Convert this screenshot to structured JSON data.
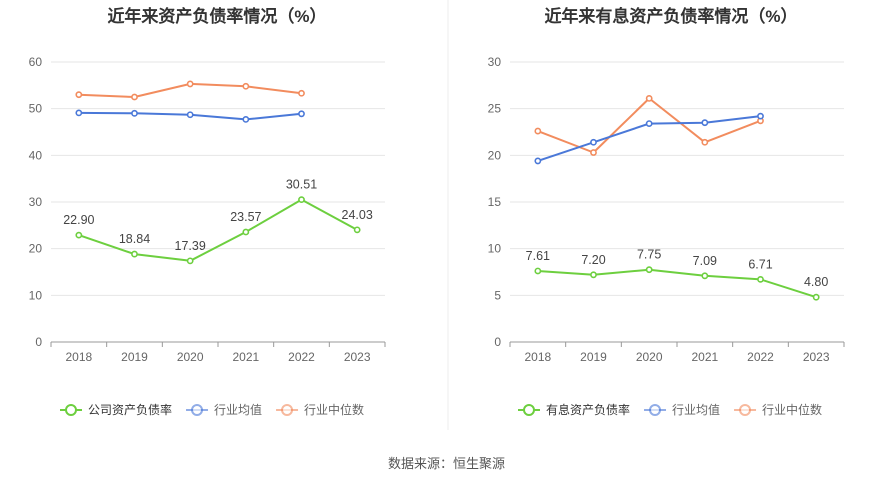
{
  "footer": {
    "source_label": "数据来源：",
    "source_value": "恒生聚源"
  },
  "chart_data": [
    {
      "type": "line",
      "title": "近年来资产负债率情况（%）",
      "categories": [
        "2018",
        "2019",
        "2020",
        "2021",
        "2022",
        "2023"
      ],
      "ylim": [
        0,
        60
      ],
      "yticks": [
        0,
        10,
        20,
        30,
        40,
        50,
        60
      ],
      "grid": true,
      "legend_position": "bottom",
      "series": [
        {
          "name": "公司资产负债率",
          "color": "#6dcf3f",
          "values": [
            22.9,
            18.84,
            17.39,
            23.57,
            30.51,
            24.03
          ],
          "labels": [
            "22.90",
            "18.84",
            "17.39",
            "23.57",
            "30.51",
            "24.03"
          ]
        },
        {
          "name": "行业均值",
          "color": "#4a78d8",
          "values": [
            49.1,
            49.0,
            48.7,
            47.7,
            48.9,
            null
          ]
        },
        {
          "name": "行业中位数",
          "color": "#f28c5e",
          "values": [
            53.0,
            52.5,
            55.3,
            54.8,
            53.3,
            null
          ]
        }
      ]
    },
    {
      "type": "line",
      "title": "近年来有息资产负债率情况（%）",
      "categories": [
        "2018",
        "2019",
        "2020",
        "2021",
        "2022",
        "2023"
      ],
      "ylim": [
        0,
        30
      ],
      "yticks": [
        0,
        5,
        10,
        15,
        20,
        25,
        30
      ],
      "grid": true,
      "legend_position": "bottom",
      "series": [
        {
          "name": "有息资产负债率",
          "color": "#6dcf3f",
          "values": [
            7.61,
            7.2,
            7.75,
            7.09,
            6.71,
            4.8
          ],
          "labels": [
            "7.61",
            "7.20",
            "7.75",
            "7.09",
            "6.71",
            "4.80"
          ]
        },
        {
          "name": "行业均值",
          "color": "#4a78d8",
          "values": [
            19.4,
            21.4,
            23.4,
            23.5,
            24.2,
            null
          ]
        },
        {
          "name": "行业中位数",
          "color": "#f28c5e",
          "values": [
            22.6,
            20.3,
            26.1,
            21.4,
            23.7,
            null
          ]
        }
      ]
    }
  ]
}
